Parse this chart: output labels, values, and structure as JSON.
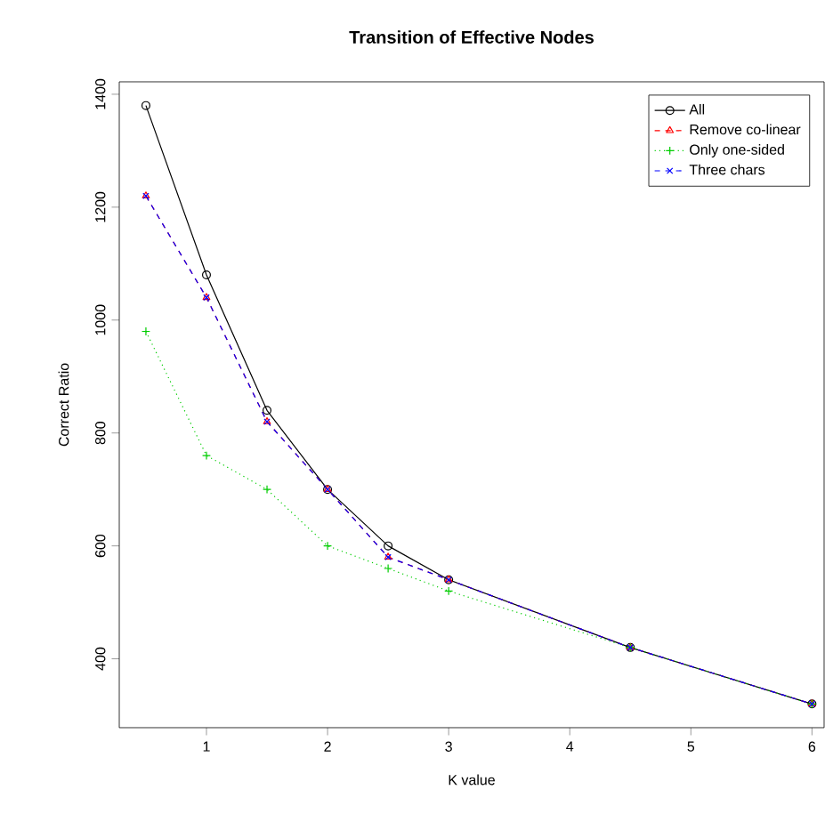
{
  "chart_data": {
    "type": "line",
    "title": "Transition of Effective Nodes",
    "xlabel": "K value",
    "ylabel": "Correct Ratio",
    "x": [
      0.5,
      1,
      1.5,
      2,
      2.5,
      3,
      4.5,
      6
    ],
    "xlim": [
      0.28,
      6.1
    ],
    "ylim": [
      278,
      1422
    ],
    "xticks": [
      1,
      2,
      3,
      4,
      5,
      6
    ],
    "yticks": [
      400,
      600,
      800,
      1000,
      1200,
      1400
    ],
    "legend": "top right",
    "grid": false,
    "series": [
      {
        "name": "All",
        "color": "#000000",
        "marker": "circle",
        "line_style": "solid",
        "values": [
          1380,
          1080,
          840,
          700,
          600,
          540,
          420,
          320
        ]
      },
      {
        "name": "Remove co-linear",
        "color": "#ff0000",
        "marker": "triangle",
        "line_style": "dashed",
        "values": [
          1220,
          1040,
          820,
          700,
          580,
          540,
          420,
          320
        ]
      },
      {
        "name": "Only one-sided",
        "color": "#00cd00",
        "marker": "plus",
        "line_style": "dotted",
        "values": [
          980,
          760,
          700,
          600,
          560,
          520,
          420,
          320
        ]
      },
      {
        "name": "Three chars",
        "color": "#0000ff",
        "marker": "cross",
        "line_style": "dashed",
        "values": [
          1220,
          1040,
          820,
          700,
          580,
          540,
          420,
          320
        ]
      }
    ]
  }
}
